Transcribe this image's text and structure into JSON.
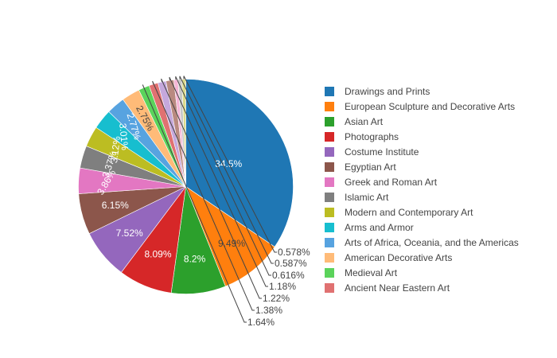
{
  "chart_data": {
    "type": "pie",
    "title": "",
    "legend_placement": "right",
    "slices": [
      {
        "label": "Drawings and Prints",
        "value": 34.5,
        "text": "34.5%",
        "color": "#1f77b4"
      },
      {
        "label": "European Sculpture and Decorative Arts",
        "value": 9.49,
        "text": "9.49%",
        "color": "#ff7f0e"
      },
      {
        "label": "Asian Art",
        "value": 8.2,
        "text": "8.2%",
        "color": "#2ca02c"
      },
      {
        "label": "Photographs",
        "value": 8.09,
        "text": "8.09%",
        "color": "#d62728"
      },
      {
        "label": "Costume Institute",
        "value": 7.52,
        "text": "7.52%",
        "color": "#9467bd"
      },
      {
        "label": "Egyptian Art",
        "value": 6.15,
        "text": "6.15%",
        "color": "#8c564b"
      },
      {
        "label": "Greek and Roman Art",
        "value": 3.86,
        "text": "3.86%",
        "color": "#e377c2"
      },
      {
        "label": "Islamic Art",
        "value": 3.37,
        "text": "3.37%",
        "color": "#7f7f7f"
      },
      {
        "label": "Modern and Contemporary Art",
        "value": 3.12,
        "text": "3.12%",
        "color": "#bcbd22"
      },
      {
        "label": "Arms and Armor",
        "value": 3.01,
        "text": "3.01%",
        "color": "#17becf"
      },
      {
        "label": "Arts of Africa, Oceania, and the Americas",
        "value": 2.77,
        "text": "2.77%",
        "color": "#57a3e0"
      },
      {
        "label": "American Decorative Arts",
        "value": 2.75,
        "text": "2.75%",
        "color": "#ffbb78"
      },
      {
        "label": "Medieval Art",
        "value": 1.64,
        "text": "1.64%",
        "color": "#5bd35b"
      },
      {
        "label": "Ancient Near Eastern Art",
        "value": 1.38,
        "text": "1.38%",
        "color": "#e07171"
      },
      {
        "label": "",
        "value": 1.22,
        "text": "1.22%",
        "color": "#c5a8dc"
      },
      {
        "label": "",
        "value": 1.18,
        "text": "1.18%",
        "color": "#b98a80"
      },
      {
        "label": "",
        "value": 0.616,
        "text": "0.616%",
        "color": "#f5b6d6"
      },
      {
        "label": "",
        "value": 0.587,
        "text": "0.587%",
        "color": "#c7c7c7"
      },
      {
        "label": "",
        "value": 0.578,
        "text": "0.578%",
        "color": "#dbdb8d"
      }
    ]
  }
}
